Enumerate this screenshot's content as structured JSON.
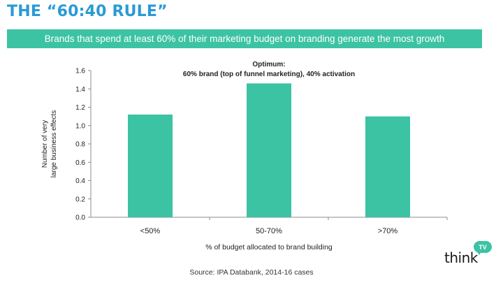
{
  "slide": {
    "title": "THE “60:40 RULE”",
    "subtitle": "Brands that spend at least 60% of their marketing budget on branding generate the most growth",
    "source": "Source: IPA Databank, 2014-16 cases",
    "logo_text": "think",
    "logo_badge": "TV"
  },
  "colors": {
    "title": "#2a9ad6",
    "banner": "#3cc3a3",
    "bar": "#3cc3a3"
  },
  "chart_data": {
    "type": "bar",
    "categories": [
      "<50%",
      "50-70%",
      ">70%"
    ],
    "values": [
      1.12,
      1.46,
      1.1
    ],
    "xlabel": "% of budget allocated to brand building",
    "ylabel_lines": [
      "Number of very",
      "large business effects"
    ],
    "ylim": [
      0,
      1.6
    ],
    "yticks": [
      "0.0",
      "0.2",
      "0.4",
      "0.6",
      "0.8",
      "1.0",
      "1.2",
      "1.4",
      "1.6"
    ],
    "annotation_lines": [
      "Optimum:",
      "60% brand (top of funnel marketing), 40% activation"
    ],
    "grid": false,
    "legend": "none"
  }
}
